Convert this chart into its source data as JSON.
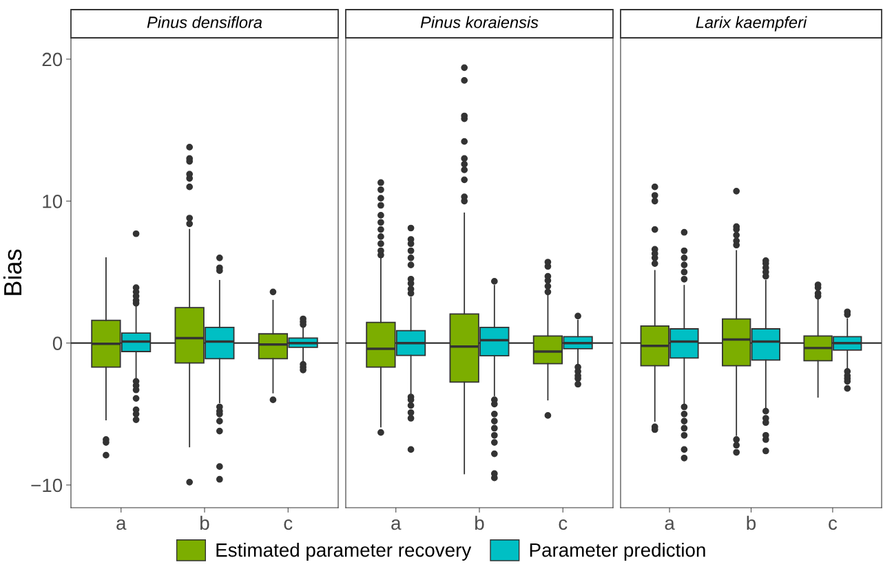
{
  "chart_data": [
    {
      "type": "box",
      "title": "Pinus densiflora",
      "ylabel": "Bias",
      "categories": [
        "a",
        "b",
        "c"
      ],
      "ylim": [
        -11.6,
        21.5
      ],
      "yticks": [
        -10,
        0,
        10,
        20
      ],
      "grid": false,
      "legend": "bottom",
      "ref_lines": [
        {
          "axis": "y",
          "value": 0,
          "color": "#000000"
        }
      ],
      "series": [
        {
          "name": "Estimated parameter recovery",
          "color": "#7cae00",
          "boxes": [
            {
              "low": -5.4,
              "q1": -1.7,
              "median": -0.05,
              "q3": 1.6,
              "high": 6.0,
              "outliers": [
                -6.8,
                -7.0,
                -7.9
              ]
            },
            {
              "low": -7.3,
              "q1": -1.4,
              "median": 0.35,
              "q3": 2.5,
              "high": 8.0,
              "outliers": [
                8.4,
                8.8,
                11.0,
                11.6,
                11.9,
                12.8,
                13.0,
                13.8,
                -9.8
              ]
            },
            {
              "low": -3.5,
              "q1": -1.1,
              "median": -0.1,
              "q3": 0.65,
              "high": 3.0,
              "outliers": [
                3.6,
                -4.0
              ]
            }
          ]
        },
        {
          "name": "Parameter prediction",
          "color": "#00bfc4",
          "boxes": [
            {
              "low": -2.5,
              "q1": -0.6,
              "median": 0.1,
              "q3": 0.7,
              "high": 2.6,
              "outliers": [
                7.7,
                3.9,
                3.6,
                3.3,
                3.0,
                2.8,
                -2.7,
                -3.0,
                -3.3,
                -3.9,
                -4.7,
                -5.0,
                -5.4
              ]
            },
            {
              "low": -4.2,
              "q1": -1.1,
              "median": 0.1,
              "q3": 1.1,
              "high": 4.4,
              "outliers": [
                6.0,
                5.3,
                5.1,
                -4.5,
                -4.8,
                -5.0,
                -5.5,
                -6.2,
                -8.7,
                -9.6
              ]
            },
            {
              "low": -1.3,
              "q1": -0.3,
              "median": 0.0,
              "q3": 0.35,
              "high": 1.2,
              "outliers": [
                1.7,
                1.5,
                1.3,
                -1.5,
                -1.7,
                -1.9
              ]
            }
          ]
        }
      ]
    },
    {
      "type": "box",
      "title": "Pinus koraiensis",
      "categories": [
        "a",
        "b",
        "c"
      ],
      "ylim": [
        -11.6,
        21.5
      ],
      "yticks": [
        -10,
        0,
        10,
        20
      ],
      "tick_labels": "x",
      "grid": false,
      "legend": false,
      "ref_lines": [
        {
          "axis": "y",
          "value": 0,
          "color": "#000000"
        }
      ],
      "series": [
        {
          "color": "#7cae00",
          "boxes": [
            {
              "low": -5.9,
              "q1": -1.7,
              "median": -0.4,
              "q3": 1.45,
              "high": 6.0,
              "outliers": [
                6.2,
                6.5,
                7.0,
                7.5,
                8.0,
                8.5,
                9.0,
                9.7,
                10.2,
                10.8,
                11.3,
                -6.3
              ]
            },
            {
              "low": -9.2,
              "q1": -2.75,
              "median": -0.25,
              "q3": 2.05,
              "high": 9.15,
              "outliers": [
                10.0,
                10.3,
                11.5,
                12.2,
                12.6,
                13.0,
                14.2,
                15.8,
                16.0,
                18.5,
                19.4
              ]
            },
            {
              "low": -4.0,
              "q1": -1.45,
              "median": -0.6,
              "q3": 0.5,
              "high": 3.35,
              "outliers": [
                3.6,
                4.0,
                4.4,
                4.7,
                5.4,
                5.7,
                -5.1
              ]
            }
          ]
        },
        {
          "color": "#00bfc4",
          "boxes": [
            {
              "low": -3.6,
              "q1": -0.87,
              "median": 0.0,
              "q3": 0.87,
              "high": 3.2,
              "outliers": [
                3.5,
                3.8,
                4.2,
                4.5,
                5.5,
                6.0,
                6.5,
                7.0,
                7.3,
                8.1,
                -3.8,
                -4.0,
                -4.4,
                -4.9,
                -5.3,
                -7.5
              ]
            },
            {
              "low": -3.7,
              "q1": -0.9,
              "median": 0.2,
              "q3": 1.1,
              "high": 4.05,
              "outliers": [
                4.35,
                -4.0,
                -4.3,
                -5.0,
                -5.5,
                -6.0,
                -6.5,
                -7.0,
                -7.8,
                -9.2,
                -9.5
              ]
            },
            {
              "low": -1.5,
              "q1": -0.4,
              "median": 0.0,
              "q3": 0.45,
              "high": 1.6,
              "outliers": [
                1.9,
                -1.7,
                -2.0,
                -2.3,
                -2.5,
                -2.9
              ]
            }
          ]
        }
      ]
    },
    {
      "type": "box",
      "title": "Larix kaempferi",
      "categories": [
        "a",
        "b",
        "c"
      ],
      "ylim": [
        -11.6,
        21.5
      ],
      "yticks": [
        -10,
        0,
        10,
        20
      ],
      "tick_labels": "x",
      "grid": false,
      "legend": false,
      "ref_lines": [
        {
          "axis": "y",
          "value": 0,
          "color": "#000000"
        }
      ],
      "series": [
        {
          "color": "#7cae00",
          "boxes": [
            {
              "low": -5.5,
              "q1": -1.6,
              "median": -0.2,
              "q3": 1.2,
              "high": 5.1,
              "outliers": [
                5.6,
                6.0,
                6.3,
                6.6,
                8.0,
                10.0,
                10.4,
                11.0,
                -5.9,
                -6.1
              ]
            },
            {
              "low": -6.5,
              "q1": -1.6,
              "median": 0.25,
              "q3": 1.7,
              "high": 6.5,
              "outliers": [
                6.9,
                7.2,
                7.6,
                8.0,
                8.2,
                10.7,
                -6.8,
                -7.2,
                -7.7
              ]
            },
            {
              "low": -3.8,
              "q1": -1.25,
              "median": -0.35,
              "q3": 0.5,
              "high": 3.1,
              "outliers": [
                3.3,
                3.5,
                3.9,
                4.1
              ]
            }
          ]
        },
        {
          "color": "#00bfc4",
          "boxes": [
            {
              "low": -4.25,
              "q1": -1.05,
              "median": 0.1,
              "q3": 1.0,
              "high": 4.05,
              "outliers": [
                4.5,
                5.0,
                5.5,
                6.0,
                6.5,
                7.8,
                -4.5,
                -5.0,
                -5.5,
                -6.0,
                -6.5,
                -7.5,
                -8.1
              ]
            },
            {
              "low": -4.55,
              "q1": -1.2,
              "median": 0.1,
              "q3": 1.0,
              "high": 4.4,
              "outliers": [
                4.7,
                5.0,
                5.3,
                5.6,
                5.8,
                -4.8,
                -5.3,
                -5.6,
                -6.5,
                -6.8,
                -7.6
              ]
            },
            {
              "low": -1.85,
              "q1": -0.5,
              "median": 0.0,
              "q3": 0.45,
              "high": 1.7,
              "outliers": [
                2.0,
                2.2,
                -2.0,
                -2.3,
                -2.5,
                -2.7,
                -3.2
              ]
            }
          ]
        }
      ]
    }
  ]
}
